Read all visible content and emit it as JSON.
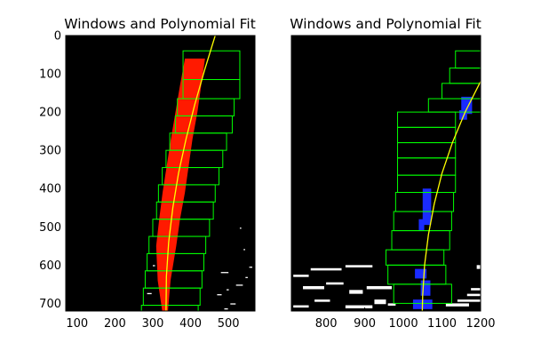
{
  "figure": {
    "background": "#ffffff"
  },
  "chart_data": [
    {
      "type": "scatter",
      "title": "Windows and Polynomial Fit",
      "xlabel": "",
      "ylabel": "",
      "xlim": [
        70,
        570
      ],
      "ylim": [
        720,
        0
      ],
      "xticks": [
        100,
        200,
        300,
        400,
        500
      ],
      "yticks": [
        0,
        100,
        200,
        300,
        400,
        500,
        600,
        700
      ],
      "grid": false,
      "colors": {
        "plot_bg": "#000000",
        "windows": "#00ff00",
        "fit": "#ffff00",
        "pixels": "#ff1a00",
        "noise": "#ffffff"
      },
      "windows": [
        {
          "xmin": 380,
          "xmax": 530,
          "ymin": 40,
          "ymax": 115
        },
        {
          "xmin": 380,
          "xmax": 530,
          "ymin": 115,
          "ymax": 165
        },
        {
          "xmin": 365,
          "xmax": 515,
          "ymin": 165,
          "ymax": 210
        },
        {
          "xmin": 360,
          "xmax": 510,
          "ymin": 210,
          "ymax": 255
        },
        {
          "xmin": 345,
          "xmax": 495,
          "ymin": 255,
          "ymax": 300
        },
        {
          "xmin": 335,
          "xmax": 485,
          "ymin": 300,
          "ymax": 345
        },
        {
          "xmin": 325,
          "xmax": 475,
          "ymin": 345,
          "ymax": 390
        },
        {
          "xmin": 315,
          "xmax": 465,
          "ymin": 390,
          "ymax": 435
        },
        {
          "xmin": 310,
          "xmax": 460,
          "ymin": 435,
          "ymax": 480
        },
        {
          "xmin": 300,
          "xmax": 450,
          "ymin": 480,
          "ymax": 525
        },
        {
          "xmin": 290,
          "xmax": 440,
          "ymin": 525,
          "ymax": 570
        },
        {
          "xmin": 285,
          "xmax": 435,
          "ymin": 570,
          "ymax": 615
        },
        {
          "xmin": 280,
          "xmax": 430,
          "ymin": 615,
          "ymax": 660
        },
        {
          "xmin": 275,
          "xmax": 425,
          "ymin": 660,
          "ymax": 705
        },
        {
          "xmin": 270,
          "xmax": 420,
          "ymin": 705,
          "ymax": 760
        }
      ],
      "fit_line": {
        "x": [
          465,
          437,
          411,
          388,
          368,
          353,
          342,
          336,
          335
        ],
        "y": [
          0,
          90,
          180,
          270,
          360,
          450,
          540,
          630,
          720
        ]
      },
      "lane_pixels": {
        "left_x": [
          385,
          372,
          360,
          348,
          337,
          326,
          317,
          309,
          313,
          325
        ],
        "right_x": [
          438,
          428,
          418,
          405,
          395,
          385,
          372,
          362,
          347,
          340
        ],
        "y": [
          60,
          130,
          200,
          270,
          340,
          410,
          480,
          550,
          640,
          720
        ]
      },
      "noise_pixels": [
        {
          "x": 467,
          "y": 722,
          "w": 8,
          "h": 3
        },
        {
          "x": 489,
          "y": 713,
          "w": 10,
          "h": 3
        },
        {
          "x": 505,
          "y": 700,
          "w": 14,
          "h": 3
        },
        {
          "x": 470,
          "y": 676,
          "w": 12,
          "h": 3
        },
        {
          "x": 495,
          "y": 663,
          "w": 6,
          "h": 3
        },
        {
          "x": 520,
          "y": 651,
          "w": 18,
          "h": 3
        },
        {
          "x": 545,
          "y": 631,
          "w": 6,
          "h": 3
        },
        {
          "x": 480,
          "y": 618,
          "w": 20,
          "h": 3
        },
        {
          "x": 555,
          "y": 604,
          "w": 8,
          "h": 3
        },
        {
          "x": 540,
          "y": 558,
          "w": 4,
          "h": 3
        },
        {
          "x": 530,
          "y": 502,
          "w": 4,
          "h": 3
        },
        {
          "x": 285,
          "y": 673,
          "w": 12,
          "h": 3
        },
        {
          "x": 300,
          "y": 600,
          "w": 6,
          "h": 3
        }
      ]
    },
    {
      "type": "scatter",
      "title": "Windows and Polynomial Fit",
      "xlabel": "",
      "ylabel": "",
      "xlim": [
        710,
        1200
      ],
      "ylim": [
        720,
        0
      ],
      "xticks": [
        800,
        900,
        1000,
        1100,
        1200
      ],
      "yticks": [],
      "grid": false,
      "colors": {
        "plot_bg": "#000000",
        "windows": "#00ff00",
        "fit": "#ffff00",
        "pixels": "#1a2bff",
        "noise": "#ffffff"
      },
      "windows": [
        {
          "xmin": 1135,
          "xmax": 1250,
          "ymin": 40,
          "ymax": 85
        },
        {
          "xmin": 1120,
          "xmax": 1270,
          "ymin": 85,
          "ymax": 125
        },
        {
          "xmin": 1100,
          "xmax": 1250,
          "ymin": 125,
          "ymax": 165
        },
        {
          "xmin": 1065,
          "xmax": 1215,
          "ymin": 165,
          "ymax": 200
        },
        {
          "xmin": 985,
          "xmax": 1135,
          "ymin": 200,
          "ymax": 240
        },
        {
          "xmin": 985,
          "xmax": 1135,
          "ymin": 240,
          "ymax": 280
        },
        {
          "xmin": 985,
          "xmax": 1135,
          "ymin": 280,
          "ymax": 320
        },
        {
          "xmin": 985,
          "xmax": 1135,
          "ymin": 320,
          "ymax": 365
        },
        {
          "xmin": 985,
          "xmax": 1135,
          "ymin": 365,
          "ymax": 410
        },
        {
          "xmin": 980,
          "xmax": 1130,
          "ymin": 410,
          "ymax": 460
        },
        {
          "xmin": 975,
          "xmax": 1125,
          "ymin": 460,
          "ymax": 510
        },
        {
          "xmin": 970,
          "xmax": 1120,
          "ymin": 510,
          "ymax": 560
        },
        {
          "xmin": 955,
          "xmax": 1105,
          "ymin": 560,
          "ymax": 600
        },
        {
          "xmin": 960,
          "xmax": 1110,
          "ymin": 600,
          "ymax": 650
        },
        {
          "xmin": 975,
          "xmax": 1125,
          "ymin": 650,
          "ymax": 700
        }
      ],
      "fit_line": {
        "x": [
          1200,
          1160,
          1127,
          1100,
          1080,
          1065,
          1055,
          1050,
          1049
        ],
        "y": [
          120,
          200,
          280,
          360,
          440,
          520,
          600,
          680,
          720
        ]
      },
      "lane_pixels": [
        {
          "x": 1150,
          "y": 160,
          "w": 28,
          "h": 45
        },
        {
          "x": 1145,
          "y": 195,
          "w": 20,
          "h": 25
        },
        {
          "x": 1050,
          "y": 400,
          "w": 22,
          "h": 95
        },
        {
          "x": 1040,
          "y": 480,
          "w": 14,
          "h": 30
        },
        {
          "x": 1030,
          "y": 610,
          "w": 30,
          "h": 25
        },
        {
          "x": 1045,
          "y": 640,
          "w": 25,
          "h": 40
        },
        {
          "x": 1025,
          "y": 690,
          "w": 50,
          "h": 25
        }
      ],
      "noise_pixels": [
        {
          "x": 715,
          "y": 625,
          "w": 40,
          "h": 6
        },
        {
          "x": 760,
          "y": 608,
          "w": 80,
          "h": 6
        },
        {
          "x": 850,
          "y": 600,
          "w": 70,
          "h": 6
        },
        {
          "x": 740,
          "y": 655,
          "w": 55,
          "h": 8
        },
        {
          "x": 800,
          "y": 645,
          "w": 45,
          "h": 6
        },
        {
          "x": 860,
          "y": 665,
          "w": 35,
          "h": 10
        },
        {
          "x": 905,
          "y": 655,
          "w": 65,
          "h": 8
        },
        {
          "x": 770,
          "y": 690,
          "w": 40,
          "h": 6
        },
        {
          "x": 850,
          "y": 705,
          "w": 70,
          "h": 8
        },
        {
          "x": 925,
          "y": 690,
          "w": 30,
          "h": 12
        },
        {
          "x": 960,
          "y": 700,
          "w": 20,
          "h": 6
        },
        {
          "x": 1110,
          "y": 700,
          "w": 60,
          "h": 8
        },
        {
          "x": 1140,
          "y": 690,
          "w": 60,
          "h": 6
        },
        {
          "x": 1165,
          "y": 675,
          "w": 35,
          "h": 6
        },
        {
          "x": 1175,
          "y": 660,
          "w": 25,
          "h": 6
        },
        {
          "x": 1190,
          "y": 600,
          "w": 10,
          "h": 10
        },
        {
          "x": 715,
          "y": 705,
          "w": 40,
          "h": 6
        }
      ]
    }
  ]
}
